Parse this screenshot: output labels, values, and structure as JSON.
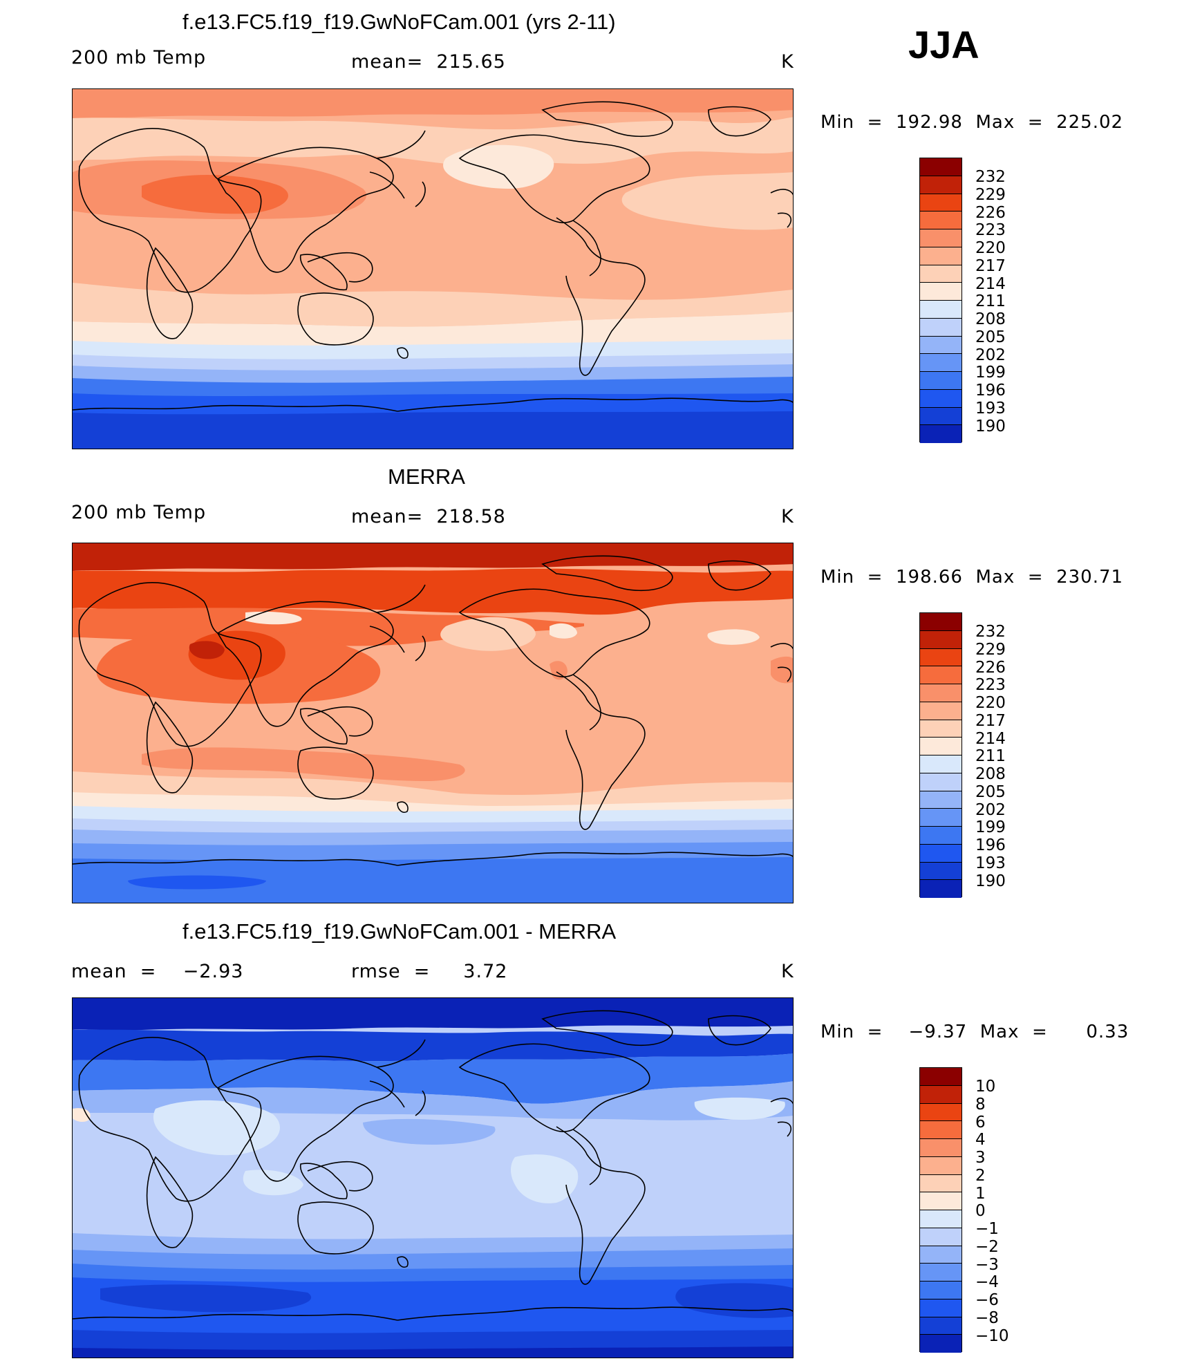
{
  "season": "JJA",
  "colors": {
    "ramp_temp": [
      "#08009a",
      "#0a22b6",
      "#1440d6",
      "#1f57f0",
      "#3d77f2",
      "#6695f6",
      "#94b4f8",
      "#bfd1fa",
      "#d9e8fb",
      "#fde9da",
      "#fdd1b7",
      "#fcb08e",
      "#f9906a",
      "#f66c3d",
      "#ea4412",
      "#c12208",
      "#8b0000"
    ],
    "ramp_diff": [
      "#08009a",
      "#0a22b6",
      "#1440d6",
      "#1f57f0",
      "#3d77f2",
      "#6695f6",
      "#94b4f8",
      "#bfd1fa",
      "#d9e8fb",
      "#fde9da",
      "#fdd1b7",
      "#fcb08e",
      "#f9906a",
      "#f66c3d",
      "#ea4412",
      "#c12208",
      "#8b0000"
    ]
  },
  "panels": [
    {
      "title": "f.e13.FC5.f19_f19.GwNoFCam.001 (yrs 2-11)",
      "left_label": "200 mb Temp",
      "center_label": "mean=  215.65",
      "units": "K",
      "minmax": "Min  =  192.98  Max  =  225.02",
      "colorbar_labels": [
        "232",
        "229",
        "226",
        "223",
        "220",
        "217",
        "214",
        "211",
        "208",
        "205",
        "202",
        "199",
        "196",
        "193",
        "190"
      ]
    },
    {
      "title": "MERRA",
      "left_label": "200 mb Temp",
      "center_label": "mean=  218.58",
      "units": "K",
      "minmax": "Min  =  198.66  Max  =  230.71",
      "colorbar_labels": [
        "232",
        "229",
        "226",
        "223",
        "220",
        "217",
        "214",
        "211",
        "208",
        "205",
        "202",
        "199",
        "196",
        "193",
        "190"
      ]
    },
    {
      "title": "f.e13.FC5.f19_f19.GwNoFCam.001 - MERRA",
      "left_label": "mean  =    −2.93",
      "center_label": "rmse  =     3.72",
      "units": "K",
      "minmax": "Min  =    −9.37  Max  =      0.33",
      "colorbar_labels": [
        "10",
        "8",
        "6",
        "4",
        "3",
        "2",
        "1",
        "0",
        "−1",
        "−2",
        "−3",
        "−4",
        "−6",
        "−8",
        "−10"
      ]
    }
  ]
}
